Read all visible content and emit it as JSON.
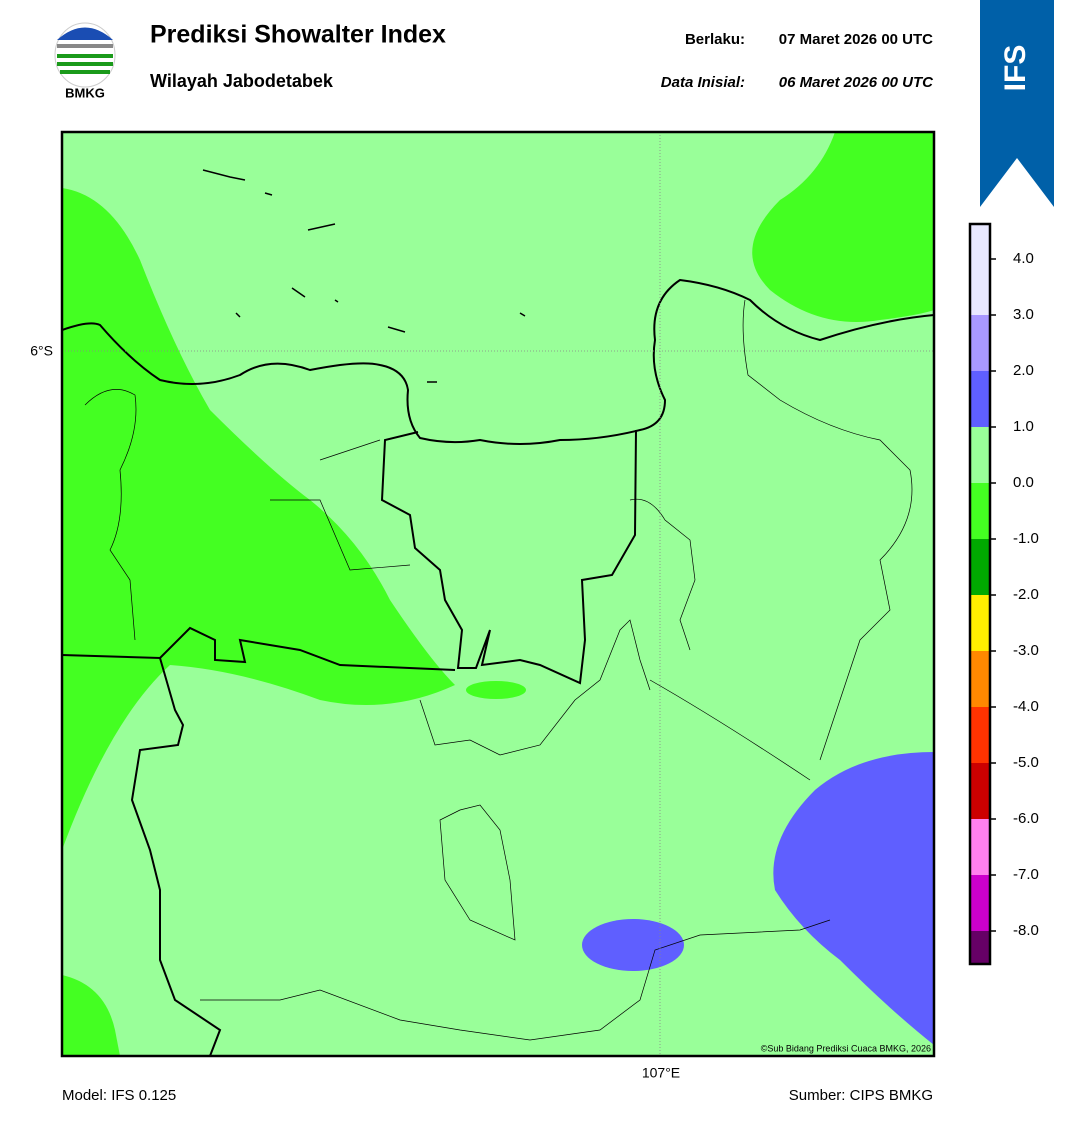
{
  "header": {
    "logo_text": "BMKG",
    "title": "Prediksi Showalter Index",
    "subtitle": "Wilayah Jabodetabek",
    "valid_label": "Berlaku:",
    "valid_value": "07 Maret 2026 00 UTC",
    "init_label": "Data Inisial:",
    "init_value": "06 Maret 2026 00 UTC",
    "badge": "IFS"
  },
  "map": {
    "lat_label": "6°S",
    "lon_label": "107°E",
    "credit": "©Sub Bidang Prediksi Cuaca BMKG, 2026"
  },
  "colorbar": {
    "ticks": [
      "4.0",
      "3.0",
      "2.0",
      "1.0",
      "0.0",
      "-1.0",
      "-2.0",
      "-3.0",
      "-4.0",
      "-5.0",
      "-6.0",
      "-7.0",
      "-8.0"
    ],
    "colors": [
      "#e8e8ff",
      "#a898ff",
      "#5f5fff",
      "#99ff99",
      "#44ff22",
      "#00aa00",
      "#ffee00",
      "#ff8800",
      "#ff3300",
      "#cc0000",
      "#ff80ee",
      "#cc00cc",
      "#660066"
    ]
  },
  "footer": {
    "model": "Model: IFS 0.125",
    "source": "Sumber: CIPS BMKG"
  }
}
